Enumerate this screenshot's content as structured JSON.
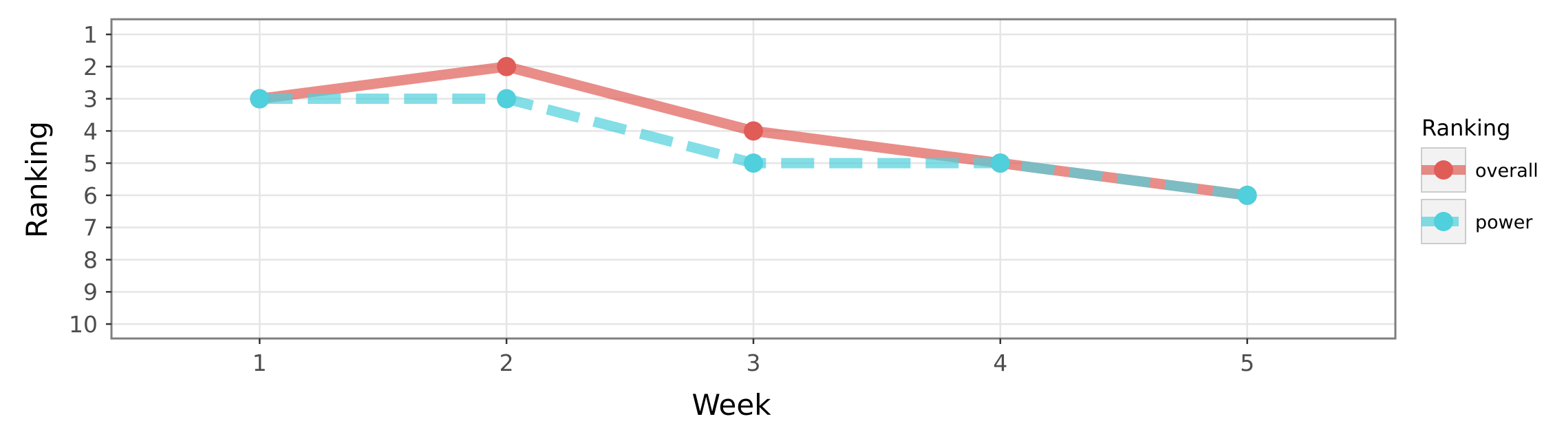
{
  "chart_data": {
    "type": "line",
    "xlabel": "Week",
    "ylabel": "Ranking",
    "x": [
      1,
      2,
      3,
      4,
      5
    ],
    "x_ticks": [
      "1",
      "2",
      "3",
      "4",
      "5"
    ],
    "xlim": [
      0.4,
      5.6
    ],
    "y_ticks": [
      "1",
      "2",
      "3",
      "4",
      "5",
      "6",
      "7",
      "8",
      "9",
      "10"
    ],
    "ylim": [
      1,
      10
    ],
    "y_reversed": true,
    "grid": true,
    "legend": {
      "title": "Ranking",
      "placement": "right"
    },
    "series": [
      {
        "name": "overall",
        "values": [
          3,
          2,
          4,
          5,
          6
        ],
        "color": "#e05c57",
        "line_style": "solid"
      },
      {
        "name": "power",
        "values": [
          3,
          3,
          5,
          5,
          6
        ],
        "color": "#4fd0dc",
        "line_style": "dashed"
      }
    ]
  }
}
